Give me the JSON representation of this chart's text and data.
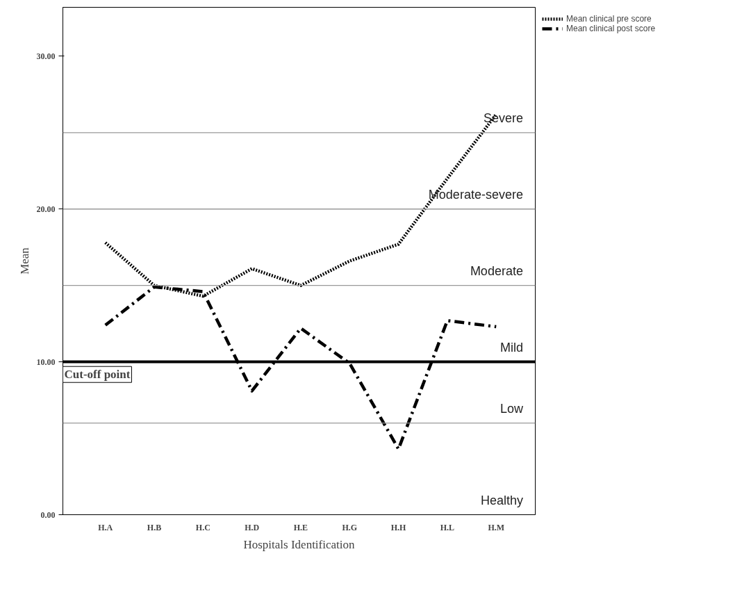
{
  "chart_data": {
    "type": "line",
    "xlabel": "Hospitals Identification",
    "ylabel": "Mean",
    "categories": [
      "H.A",
      "H.B",
      "H.C",
      "H.D",
      "H.E",
      "H.G",
      "H.H",
      "H.L",
      "H.M"
    ],
    "series": [
      {
        "name": "Mean clinical pre score",
        "color": "#000000",
        "line_style": "dotted",
        "values": [
          17.8,
          15.0,
          14.3,
          16.1,
          15.0,
          16.6,
          17.7,
          22.0,
          26.2
        ]
      },
      {
        "name": "Mean clinical post score",
        "color": "#000000",
        "line_style": "dashdot",
        "values": [
          12.4,
          14.9,
          14.6,
          8.1,
          12.2,
          9.9,
          4.3,
          12.7,
          12.3
        ]
      }
    ],
    "ylim": [
      0,
      33.2
    ],
    "yticks": [
      {
        "value": 0,
        "label": "0.00"
      },
      {
        "value": 10,
        "label": "10.00"
      },
      {
        "value": 20,
        "label": "20.00"
      },
      {
        "value": 30,
        "label": "30.00"
      }
    ],
    "ref_lines": [
      {
        "axis": "y",
        "value": 25,
        "color": "#999999"
      },
      {
        "axis": "y",
        "value": 20,
        "color": "#999999"
      },
      {
        "axis": "y",
        "value": 15,
        "color": "#999999"
      },
      {
        "axis": "y",
        "value": 10,
        "color": "#000000",
        "label": "Cut-off point"
      },
      {
        "axis": "y",
        "value": 6,
        "color": "#999999"
      }
    ],
    "annotations": [
      "Severe",
      "Moderate-severe",
      "Moderate",
      "Mild",
      "Low",
      "Healthy"
    ],
    "grid": false,
    "legend": "top right",
    "marker": "none"
  }
}
